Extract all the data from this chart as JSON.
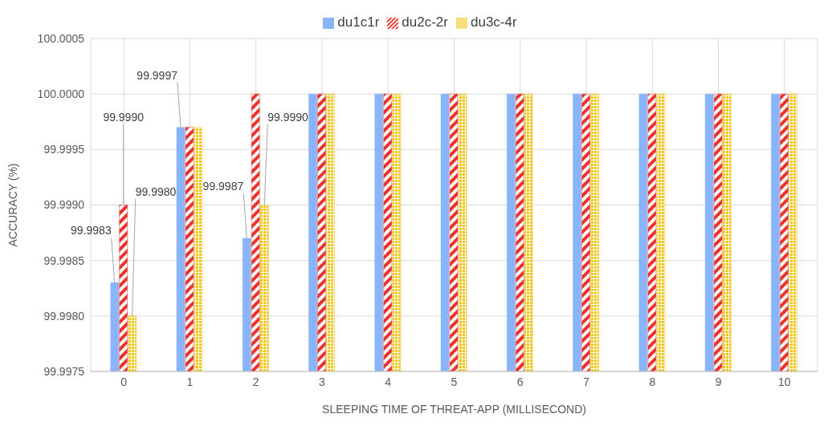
{
  "chart_data": {
    "type": "bar",
    "xlabel": "SLEEPING TIME OF THREAT-APP (MILLISECOND)",
    "ylabel": "ACCURACY (%)",
    "categories": [
      "0",
      "1",
      "2",
      "3",
      "4",
      "5",
      "6",
      "7",
      "8",
      "9",
      "10"
    ],
    "series": [
      {
        "name": "du1c1r",
        "color": "#8ab4f8",
        "values": [
          99.9983,
          99.9997,
          99.9987,
          100,
          100,
          100,
          100,
          100,
          100,
          100,
          100
        ],
        "value_labels": [
          "99.9983",
          "99.9997",
          "99.9987",
          null,
          null,
          null,
          null,
          null,
          null,
          null,
          null
        ]
      },
      {
        "name": "du2c-2r",
        "color": "#e8322b",
        "values": [
          99.999,
          99.9997,
          100,
          100,
          100,
          100,
          100,
          100,
          100,
          100,
          100
        ],
        "value_labels": [
          "99.9990",
          null,
          null,
          null,
          null,
          null,
          null,
          null,
          null,
          null,
          null
        ]
      },
      {
        "name": "du3c-4r",
        "color": "#f5c518",
        "values": [
          99.998,
          99.9997,
          99.999,
          100,
          100,
          100,
          100,
          100,
          100,
          100,
          100
        ],
        "value_labels": [
          "99.9980",
          null,
          "99.9990",
          null,
          null,
          null,
          null,
          null,
          null,
          null,
          null
        ]
      }
    ],
    "ylim": [
      99.9975,
      100.0005
    ],
    "yticks": [
      {
        "value": 99.9975,
        "label": "99.9975"
      },
      {
        "value": 99.998,
        "label": "99.9980"
      },
      {
        "value": 99.9985,
        "label": "99.9985"
      },
      {
        "value": 99.999,
        "label": "99.9990"
      },
      {
        "value": 99.9995,
        "label": "99.9995"
      },
      {
        "value": 100,
        "label": "100.0000"
      },
      {
        "value": 100.0005,
        "label": "100.0005"
      }
    ],
    "grid": true,
    "legend": "top"
  }
}
